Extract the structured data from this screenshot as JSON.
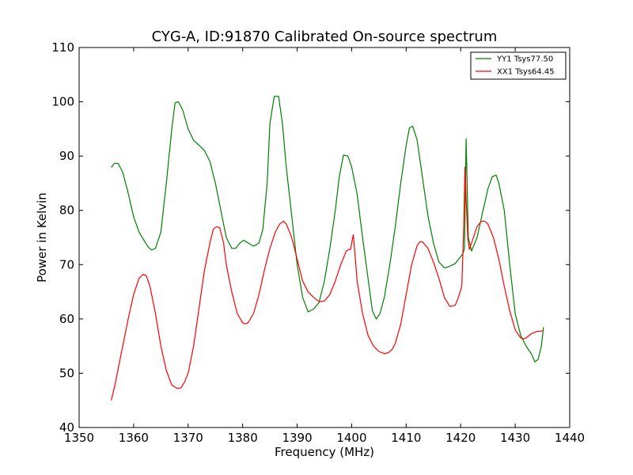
{
  "chart_data": {
    "type": "line",
    "title": "CYG-A, ID:91870 Calibrated On-source spectrum",
    "xlabel": "Frequency (MHz)",
    "ylabel": "Power in Kelvin",
    "xlim": [
      1350,
      1440
    ],
    "ylim": [
      40,
      110
    ],
    "xticks": [
      "1350",
      "1360",
      "1370",
      "1380",
      "1390",
      "1400",
      "1410",
      "1420",
      "1430",
      "1440"
    ],
    "yticks": [
      "40",
      "50",
      "60",
      "70",
      "80",
      "90",
      "100",
      "110"
    ],
    "grid": false,
    "legend_position": "top-right",
    "series": [
      {
        "name": "YY1 Tsys77.50",
        "color": "#008000",
        "x": [
          1355.9,
          1356.5,
          1357.2,
          1358.0,
          1359.0,
          1360.0,
          1361.0,
          1362.0,
          1362.7,
          1363.3,
          1364.0,
          1365.0,
          1366.0,
          1367.0,
          1367.6,
          1368.2,
          1369.0,
          1370.0,
          1371.0,
          1372.0,
          1373.0,
          1374.0,
          1375.0,
          1376.0,
          1377.0,
          1378.0,
          1378.7,
          1379.5,
          1380.2,
          1381.0,
          1382.0,
          1383.0,
          1383.7,
          1384.5,
          1385.0,
          1385.8,
          1386.6,
          1387.3,
          1388.0,
          1389.0,
          1390.0,
          1391.0,
          1392.0,
          1393.0,
          1394.0,
          1395.0,
          1396.0,
          1397.0,
          1397.7,
          1398.5,
          1399.3,
          1400.0,
          1401.0,
          1402.0,
          1403.0,
          1403.8,
          1404.5,
          1405.2,
          1406.0,
          1407.0,
          1408.0,
          1409.0,
          1410.0,
          1410.6,
          1411.2,
          1412.0,
          1413.0,
          1414.0,
          1415.0,
          1416.0,
          1417.0,
          1418.0,
          1419.0,
          1420.0,
          1420.4,
          1420.7,
          1421.0,
          1421.4,
          1422.0,
          1423.0,
          1424.0,
          1425.0,
          1425.8,
          1426.5,
          1427.0,
          1428.0,
          1429.0,
          1430.0,
          1431.0,
          1432.0,
          1433.0,
          1433.6,
          1434.2,
          1434.8,
          1435.2
        ],
        "values": [
          87.9,
          88.7,
          88.6,
          87.0,
          83.2,
          78.8,
          76.0,
          74.3,
          73.2,
          72.7,
          73.0,
          76.0,
          85.0,
          95.0,
          99.8,
          100.0,
          98.5,
          95.0,
          92.9,
          92.0,
          91.0,
          89.0,
          85.0,
          80.0,
          75.0,
          73.0,
          73.0,
          74.0,
          74.5,
          74.0,
          73.4,
          74.0,
          76.5,
          85.0,
          96.0,
          101.0,
          101.0,
          96.0,
          88.0,
          79.0,
          70.0,
          64.0,
          61.3,
          61.8,
          63.0,
          67.0,
          73.0,
          80.0,
          86.0,
          90.2,
          90.0,
          88.0,
          83.0,
          75.0,
          67.5,
          61.5,
          60.0,
          61.0,
          64.0,
          70.0,
          77.0,
          85.0,
          92.0,
          95.2,
          95.5,
          93.0,
          86.0,
          79.0,
          74.0,
          70.5,
          69.4,
          69.7,
          70.2,
          71.5,
          72.0,
          73.0,
          93.2,
          75.0,
          72.5,
          75.0,
          79.5,
          84.0,
          86.2,
          86.5,
          85.0,
          80.0,
          70.0,
          61.0,
          57.0,
          55.0,
          53.5,
          52.1,
          52.5,
          55.0,
          58.5
        ]
      },
      {
        "name": "XX1 Tsys64.45",
        "color": "#ff0000",
        "x": [
          1355.9,
          1356.5,
          1357.2,
          1358.0,
          1359.0,
          1360.0,
          1361.0,
          1361.7,
          1362.3,
          1363.0,
          1364.0,
          1365.0,
          1366.0,
          1367.0,
          1368.0,
          1368.7,
          1369.4,
          1370.0,
          1371.0,
          1372.0,
          1373.0,
          1374.0,
          1374.6,
          1375.2,
          1375.8,
          1376.5,
          1377.0,
          1378.0,
          1379.0,
          1380.0,
          1380.5,
          1381.0,
          1382.0,
          1383.0,
          1384.0,
          1385.0,
          1386.0,
          1386.8,
          1387.5,
          1388.0,
          1389.0,
          1390.0,
          1391.0,
          1392.0,
          1393.0,
          1394.0,
          1395.0,
          1396.0,
          1397.0,
          1398.0,
          1399.0,
          1399.5,
          1399.8,
          1400.0,
          1400.3,
          1400.6,
          1401.0,
          1402.0,
          1403.0,
          1404.0,
          1405.0,
          1406.0,
          1406.8,
          1407.5,
          1408.0,
          1409.0,
          1410.0,
          1411.0,
          1412.0,
          1412.5,
          1413.0,
          1414.0,
          1415.0,
          1416.0,
          1417.0,
          1418.0,
          1419.0,
          1419.6,
          1420.2,
          1420.5,
          1420.8,
          1421.0,
          1421.3,
          1421.6,
          1422.0,
          1423.0,
          1423.8,
          1424.4,
          1425.0,
          1426.0,
          1427.0,
          1428.0,
          1429.0,
          1430.0,
          1431.0,
          1431.5,
          1432.0,
          1433.0,
          1434.0,
          1435.0,
          1435.2
        ],
        "values": [
          45.0,
          47.5,
          51.0,
          55.0,
          60.0,
          64.5,
          67.5,
          68.2,
          68.0,
          66.0,
          61.0,
          55.0,
          50.5,
          47.8,
          47.2,
          47.3,
          48.5,
          50.0,
          55.0,
          62.0,
          69.0,
          74.0,
          76.5,
          77.0,
          76.8,
          74.0,
          70.0,
          65.0,
          61.0,
          59.3,
          59.1,
          59.3,
          61.0,
          64.5,
          69.0,
          73.0,
          76.0,
          77.5,
          78.0,
          77.5,
          75.0,
          71.0,
          67.0,
          65.0,
          64.0,
          63.2,
          63.3,
          64.5,
          67.0,
          70.0,
          72.5,
          72.8,
          72.8,
          74.0,
          75.5,
          72.0,
          67.0,
          61.0,
          57.0,
          55.0,
          54.0,
          53.6,
          53.8,
          54.5,
          55.5,
          59.0,
          64.5,
          70.0,
          73.5,
          74.2,
          74.2,
          73.0,
          70.5,
          67.5,
          64.0,
          62.3,
          62.5,
          64.0,
          66.0,
          75.0,
          88.0,
          82.0,
          75.0,
          72.8,
          74.0,
          77.0,
          78.0,
          78.0,
          77.5,
          75.0,
          71.0,
          66.0,
          61.5,
          58.0,
          56.5,
          56.3,
          56.5,
          57.3,
          57.7,
          57.8,
          57.8
        ]
      }
    ]
  }
}
